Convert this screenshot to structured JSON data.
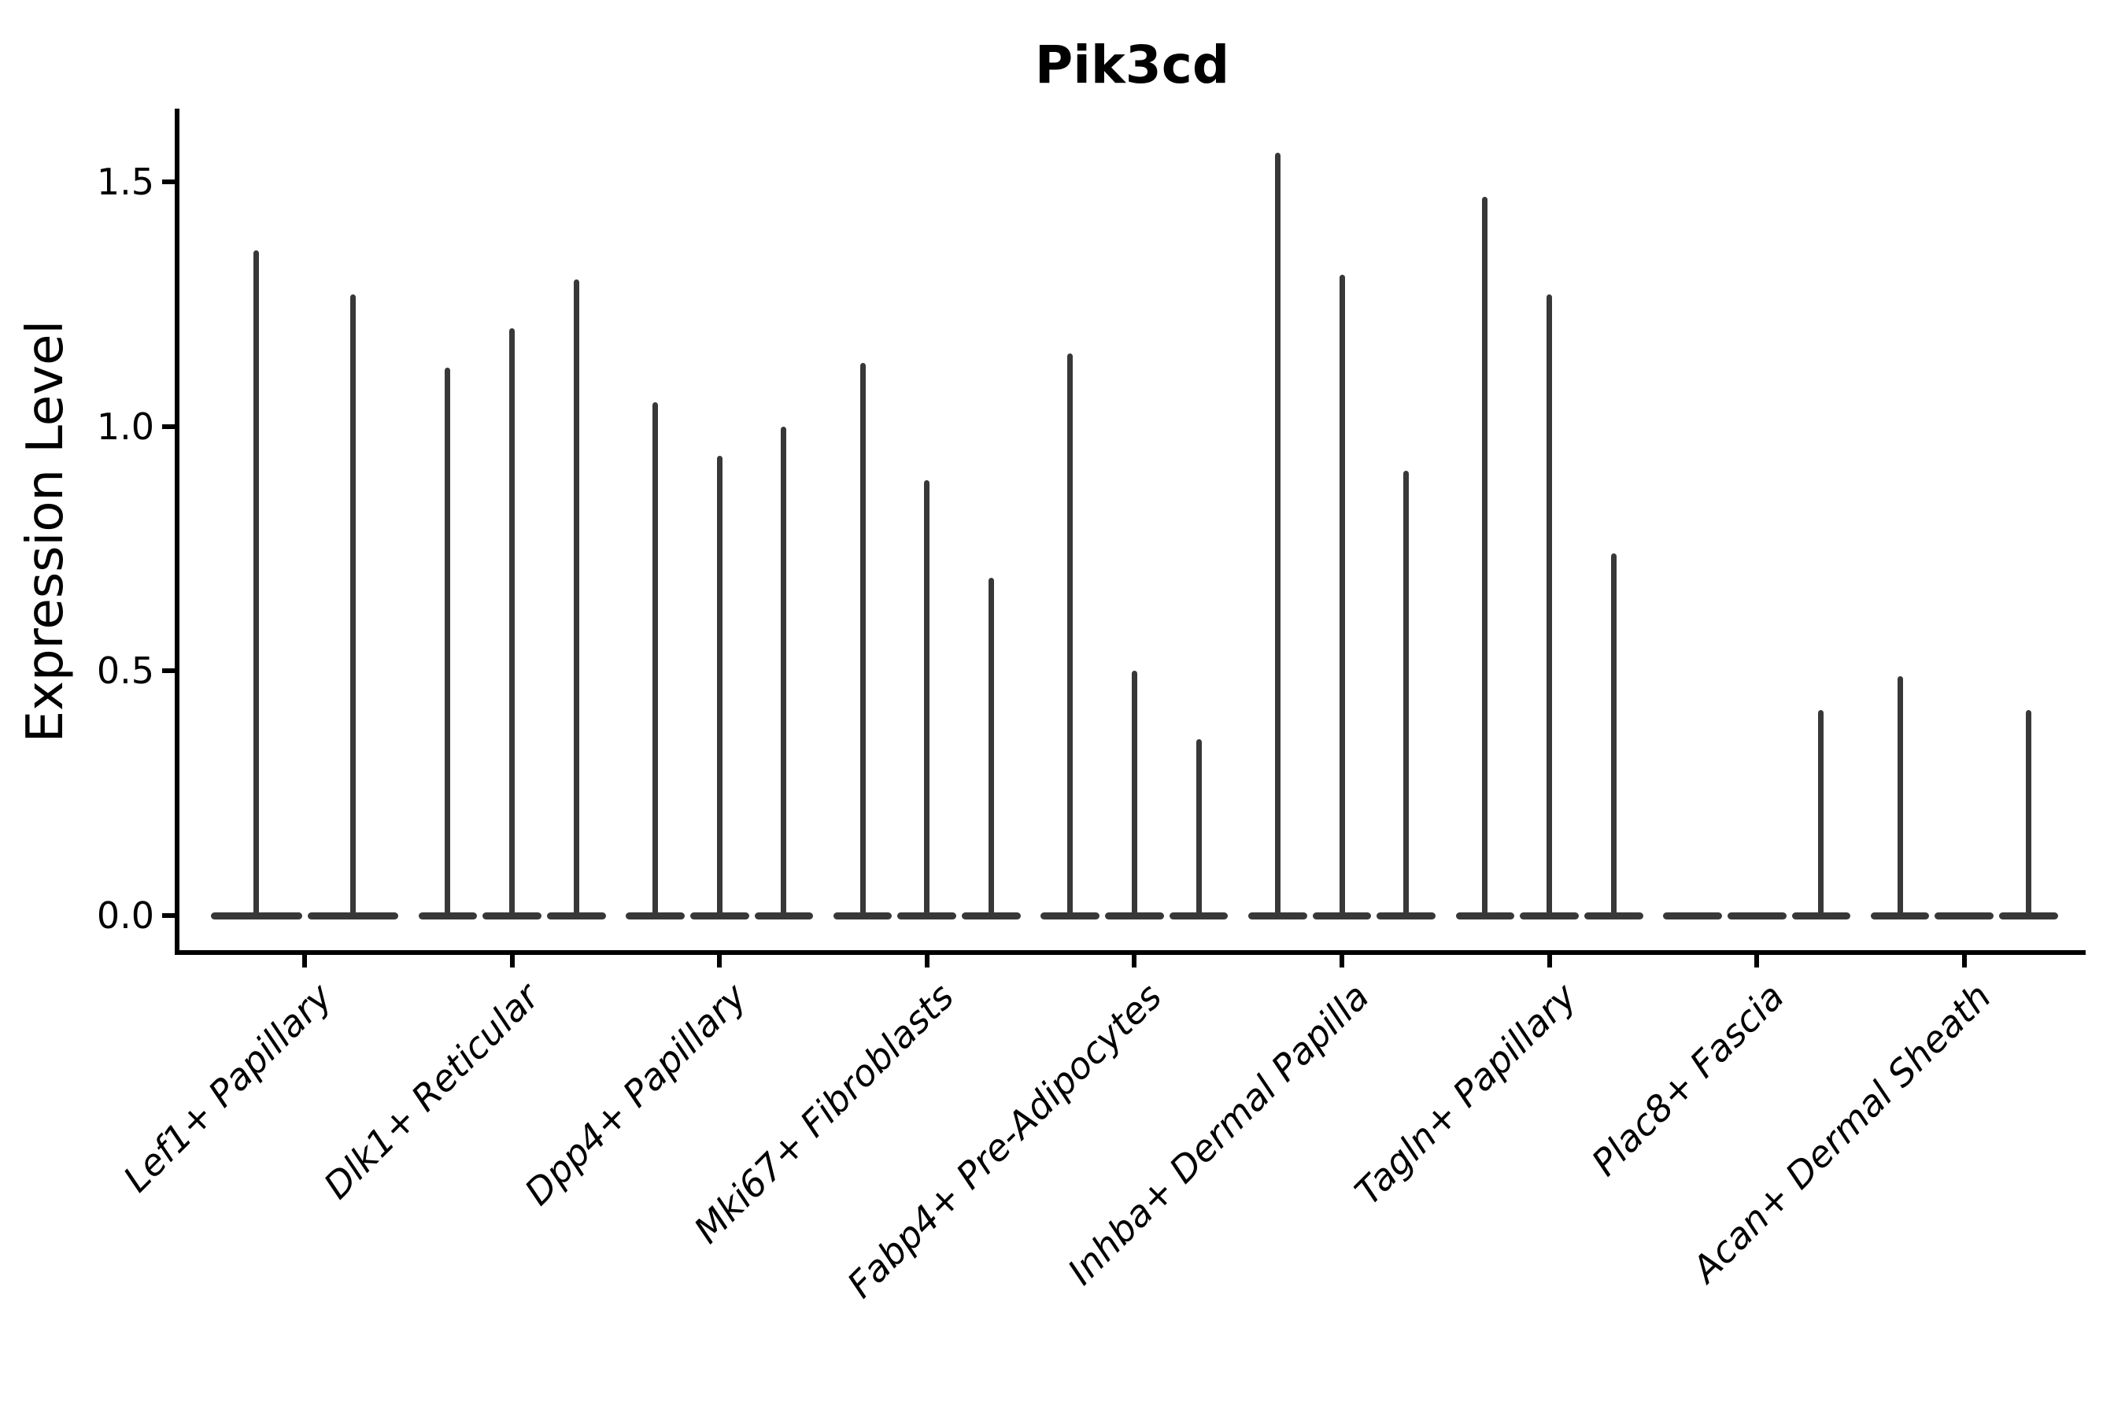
{
  "title": "Pik3cd",
  "y_axis": {
    "label": "Expression Level",
    "tick_labels": [
      "0.0",
      "0.5",
      "1.0",
      "1.5"
    ]
  },
  "x_axis": {
    "tick_rotation_deg": 45,
    "categories": [
      "Lef1+ Papillary",
      "Dlk1+ Reticular",
      "Dpp4+ Papillary",
      "Mki67+ Fibroblasts",
      "Fabp4+ Pre-Adipocytes",
      "Inhba+ Dermal Papilla",
      "Tagln+ Papillary",
      "Plac8+ Fascia",
      "Acan+ Dermal Sheath"
    ]
  },
  "colors": {
    "violin": "#383838",
    "axis": "#000000",
    "text": "#000000",
    "background": "#ffffff"
  },
  "chart_data": {
    "type": "violin",
    "title": "Pik3cd",
    "xlabel": "",
    "ylabel": "Expression Level",
    "yticks": [
      0.0,
      0.5,
      1.0,
      1.5
    ],
    "ylim": [
      -0.08,
      1.65
    ],
    "grid": false,
    "legend": null,
    "style_note": "Seurat-style stacked violin: expression density collapsed at zero (flat bar) with a thin spike rising to the maximum expression value of each violin; several violins per cell-type category",
    "categories": [
      "Lef1+ Papillary",
      "Dlk1+ Reticular",
      "Dpp4+ Papillary",
      "Mki67+ Fibroblasts",
      "Fabp4+ Pre-Adipocytes",
      "Inhba+ Dermal Papilla",
      "Tagln+ Papillary",
      "Plac8+ Fascia",
      "Acan+ Dermal Sheath"
    ],
    "groups": [
      {
        "category": "Lef1+ Papillary",
        "violin_peaks": [
          1.36,
          1.27
        ]
      },
      {
        "category": "Dlk1+ Reticular",
        "violin_peaks": [
          1.12,
          1.2,
          1.3
        ]
      },
      {
        "category": "Dpp4+ Papillary",
        "violin_peaks": [
          1.05,
          0.94,
          1.0
        ]
      },
      {
        "category": "Mki67+ Fibroblasts",
        "violin_peaks": [
          1.13,
          0.89,
          0.69
        ]
      },
      {
        "category": "Fabp4+ Pre-Adipocytes",
        "violin_peaks": [
          1.15,
          0.5,
          0.36
        ]
      },
      {
        "category": "Inhba+ Dermal Papilla",
        "violin_peaks": [
          1.56,
          1.31,
          0.91
        ]
      },
      {
        "category": "Tagln+ Papillary",
        "violin_peaks": [
          1.47,
          1.27,
          0.74
        ]
      },
      {
        "category": "Plac8+ Fascia",
        "violin_peaks": [
          0.0,
          0.0,
          0.42
        ]
      },
      {
        "category": "Acan+ Dermal Sheath",
        "violin_peaks": [
          0.49,
          0.0,
          0.42
        ]
      }
    ]
  }
}
